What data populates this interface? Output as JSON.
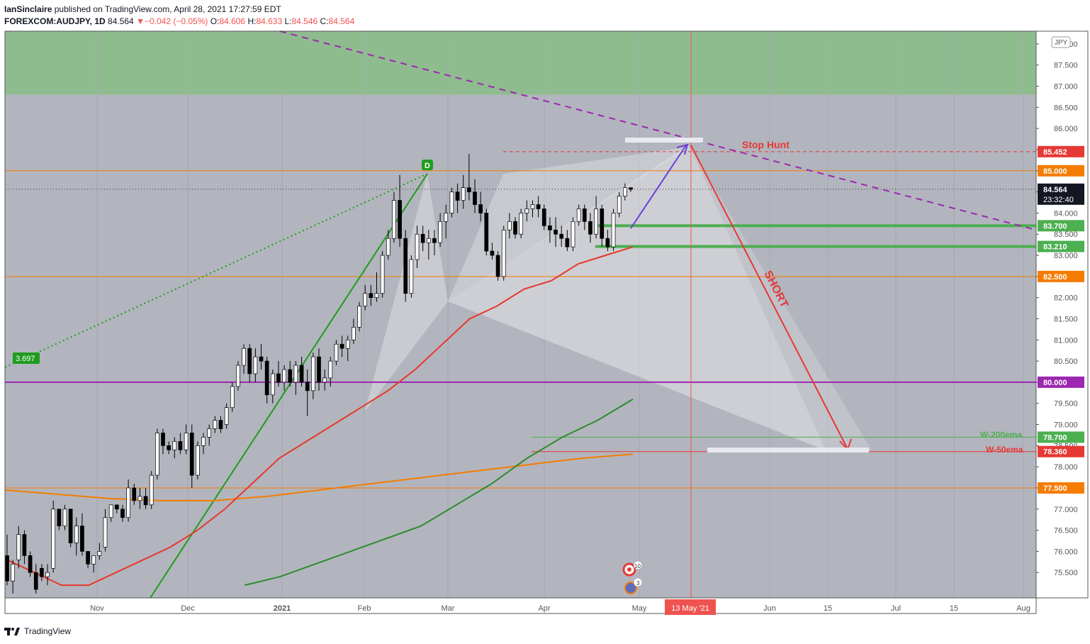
{
  "header": {
    "publisher": "IanSinclaire",
    "published_text": "published on TradingView.com, April 28, 2021 17:27:59 EDT",
    "symbol": "FOREXCOM:AUDJPY, 1D",
    "last": "84.564",
    "change_arrow": "▼",
    "change": "−0.042 (−0.05%)",
    "o_label": "O:",
    "o_value": "84.606",
    "h_label": "H:",
    "h_value": "84.633",
    "l_label": "L:",
    "l_value": "84.546",
    "c_label": "C:",
    "c_value": "84.564"
  },
  "footer": {
    "brand": "TradingView"
  },
  "colors": {
    "background": "#b2b5be",
    "green_zone": "#8fbc8f",
    "candle_up": "#ffffff",
    "candle_down": "#000000",
    "ema_red": "#e8372c",
    "ema_green": "#2e8b2e",
    "ma_orange": "#f57c00",
    "purple": "#9c27b0",
    "stop_hunt": "#e53935"
  },
  "chart_data": {
    "type": "candlestick",
    "symbol": "AUDJPY",
    "timeframe": "1D",
    "currency_badge": "JPY",
    "ylim": [
      74.9,
      88.3
    ],
    "y_ticks": [
      "75.500",
      "76.000",
      "76.500",
      "77.000",
      "77.500",
      "78.000",
      "78.500",
      "79.000",
      "79.500",
      "80.000",
      "80.500",
      "81.000",
      "81.500",
      "82.000",
      "82.500",
      "83.000",
      "83.500",
      "84.000",
      "84.500",
      "85.000",
      "85.500",
      "86.000",
      "86.500",
      "87.000",
      "87.500",
      "88.000"
    ],
    "x_ticks": [
      "Nov",
      "Dec",
      "2021",
      "Feb",
      "Mar",
      "Apr",
      "May",
      "Jun",
      "15",
      "Jul",
      "15",
      "Aug"
    ],
    "candles_ohlc": [
      [
        75.9,
        76.4,
        75.2,
        75.3
      ],
      [
        75.3,
        75.8,
        75.0,
        75.7
      ],
      [
        75.8,
        76.6,
        75.6,
        76.4
      ],
      [
        76.4,
        76.5,
        75.7,
        75.9
      ],
      [
        75.9,
        76.0,
        75.4,
        75.5
      ],
      [
        75.5,
        75.7,
        75.0,
        75.1
      ],
      [
        75.6,
        75.7,
        75.3,
        75.4
      ],
      [
        75.4,
        75.7,
        75.2,
        75.5
      ],
      [
        75.6,
        77.2,
        75.5,
        77.0
      ],
      [
        77.0,
        77.0,
        76.5,
        76.6
      ],
      [
        76.6,
        77.1,
        76.5,
        77.0
      ],
      [
        77.0,
        77.0,
        76.1,
        76.2
      ],
      [
        76.2,
        76.8,
        75.9,
        76.6
      ],
      [
        76.6,
        76.9,
        75.9,
        76.0
      ],
      [
        76.0,
        76.0,
        75.6,
        75.7
      ],
      [
        75.7,
        75.9,
        75.5,
        75.9
      ],
      [
        75.9,
        76.2,
        75.8,
        76.0
      ],
      [
        76.1,
        77.0,
        76.0,
        76.8
      ],
      [
        76.8,
        77.1,
        76.7,
        77.1
      ],
      [
        77.1,
        77.1,
        76.9,
        77.0
      ],
      [
        77.0,
        77.1,
        76.7,
        76.8
      ],
      [
        76.8,
        77.7,
        76.7,
        77.5
      ],
      [
        77.5,
        77.6,
        77.1,
        77.2
      ],
      [
        77.2,
        77.5,
        77.0,
        77.3
      ],
      [
        77.3,
        77.5,
        77.0,
        77.1
      ],
      [
        77.1,
        77.9,
        77.0,
        77.8
      ],
      [
        77.8,
        78.9,
        77.7,
        78.8
      ],
      [
        78.8,
        78.9,
        78.3,
        78.5
      ],
      [
        78.5,
        78.6,
        78.3,
        78.4
      ],
      [
        78.4,
        78.7,
        78.2,
        78.6
      ],
      [
        78.6,
        78.8,
        78.3,
        78.4
      ],
      [
        78.4,
        79.0,
        78.3,
        78.8
      ],
      [
        78.8,
        79.0,
        77.5,
        77.8
      ],
      [
        77.8,
        78.6,
        77.7,
        78.5
      ],
      [
        78.5,
        78.8,
        78.3,
        78.7
      ],
      [
        78.7,
        79.0,
        78.5,
        78.9
      ],
      [
        78.9,
        79.2,
        78.8,
        79.1
      ],
      [
        79.1,
        79.2,
        78.8,
        78.9
      ],
      [
        79.0,
        79.5,
        78.9,
        79.4
      ],
      [
        79.4,
        80.0,
        79.3,
        79.9
      ],
      [
        79.9,
        80.5,
        79.8,
        80.4
      ],
      [
        80.4,
        80.9,
        80.2,
        80.8
      ],
      [
        80.8,
        80.9,
        80.0,
        80.2
      ],
      [
        80.2,
        80.8,
        80.0,
        80.6
      ],
      [
        80.6,
        80.9,
        80.3,
        80.5
      ],
      [
        80.5,
        80.6,
        79.5,
        79.7
      ],
      [
        79.7,
        80.3,
        79.5,
        80.2
      ],
      [
        80.2,
        80.5,
        79.9,
        80.0
      ],
      [
        80.0,
        80.4,
        79.8,
        80.3
      ],
      [
        80.3,
        80.5,
        79.9,
        80.0
      ],
      [
        80.0,
        80.5,
        79.7,
        80.4
      ],
      [
        80.4,
        80.6,
        79.9,
        80.0
      ],
      [
        80.0,
        80.3,
        79.2,
        79.8
      ],
      [
        79.8,
        80.7,
        79.6,
        80.6
      ],
      [
        80.6,
        80.8,
        79.8,
        80.0
      ],
      [
        80.0,
        80.3,
        79.8,
        80.1
      ],
      [
        80.1,
        80.6,
        79.9,
        80.5
      ],
      [
        80.5,
        81.0,
        80.4,
        80.9
      ],
      [
        80.9,
        81.1,
        80.6,
        80.8
      ],
      [
        80.8,
        81.1,
        80.5,
        81.0
      ],
      [
        81.0,
        81.5,
        80.9,
        81.3
      ],
      [
        81.3,
        81.9,
        81.2,
        81.8
      ],
      [
        81.8,
        82.3,
        81.7,
        82.1
      ],
      [
        82.1,
        82.3,
        81.8,
        82.0
      ],
      [
        82.0,
        82.6,
        81.9,
        82.1
      ],
      [
        82.1,
        83.1,
        82.0,
        83.0
      ],
      [
        83.0,
        83.6,
        82.9,
        83.4
      ],
      [
        83.4,
        84.5,
        83.3,
        84.3
      ],
      [
        84.3,
        84.9,
        83.2,
        83.4
      ],
      [
        83.4,
        83.6,
        81.9,
        82.1
      ],
      [
        82.1,
        83.0,
        82.0,
        82.9
      ],
      [
        82.9,
        83.7,
        82.7,
        83.5
      ],
      [
        83.5,
        83.7,
        83.1,
        83.3
      ],
      [
        83.3,
        83.6,
        82.9,
        83.4
      ],
      [
        83.4,
        83.6,
        83.0,
        83.3
      ],
      [
        83.3,
        84.0,
        83.2,
        83.8
      ],
      [
        83.8,
        84.2,
        83.4,
        84.0
      ],
      [
        84.0,
        84.6,
        83.9,
        84.5
      ],
      [
        84.5,
        84.7,
        84.0,
        84.3
      ],
      [
        84.3,
        84.9,
        84.1,
        84.6
      ],
      [
        84.6,
        85.4,
        84.3,
        84.5
      ],
      [
        84.5,
        84.8,
        84.0,
        84.2
      ],
      [
        84.2,
        84.5,
        83.8,
        84.0
      ],
      [
        84.0,
        84.1,
        83.0,
        83.1
      ],
      [
        83.1,
        83.3,
        82.9,
        83.0
      ],
      [
        83.0,
        83.1,
        82.4,
        82.5
      ],
      [
        82.5,
        83.7,
        82.4,
        83.6
      ],
      [
        83.6,
        84.0,
        83.4,
        83.8
      ],
      [
        83.8,
        83.9,
        83.4,
        83.5
      ],
      [
        83.5,
        84.1,
        83.4,
        84.0
      ],
      [
        84.0,
        84.3,
        83.8,
        84.1
      ],
      [
        84.1,
        84.3,
        83.9,
        84.2
      ],
      [
        84.2,
        84.4,
        83.9,
        84.1
      ],
      [
        84.1,
        84.2,
        83.6,
        83.7
      ],
      [
        83.7,
        83.9,
        83.3,
        83.6
      ],
      [
        83.6,
        83.9,
        83.2,
        83.5
      ],
      [
        83.5,
        83.7,
        83.2,
        83.4
      ],
      [
        83.4,
        83.6,
        83.1,
        83.2
      ],
      [
        83.2,
        83.9,
        83.1,
        83.8
      ],
      [
        83.8,
        84.2,
        83.7,
        84.1
      ],
      [
        84.1,
        84.2,
        83.6,
        83.8
      ],
      [
        83.8,
        84.0,
        83.3,
        83.5
      ],
      [
        83.5,
        84.4,
        83.4,
        84.1
      ],
      [
        84.1,
        84.2,
        83.2,
        83.4
      ],
      [
        83.4,
        83.6,
        83.1,
        83.2
      ],
      [
        83.2,
        84.1,
        83.1,
        84.0
      ],
      [
        84.0,
        84.5,
        83.9,
        84.4
      ],
      [
        84.4,
        84.7,
        84.3,
        84.6
      ],
      [
        84.6,
        84.6,
        84.5,
        84.56
      ]
    ],
    "ema_red": [
      75.8,
      75.5,
      75.2,
      75.2,
      75.5,
      75.8,
      76.1,
      76.5,
      77.0,
      77.6,
      78.2,
      78.6,
      79.0,
      79.4,
      79.8,
      80.3,
      80.9,
      81.5,
      81.8,
      82.2,
      82.4,
      82.8,
      83.0,
      83.2
    ],
    "ema_green_200": [
      75.2,
      75.4,
      75.7,
      76.0,
      76.3,
      76.6,
      77.1,
      77.6,
      78.2,
      78.7,
      79.1,
      79.6
    ],
    "ma_orange": [
      77.45,
      77.35,
      77.25,
      77.2,
      77.2,
      77.3,
      77.45,
      77.6,
      77.75,
      77.9,
      78.05,
      78.2,
      78.3
    ],
    "horizontal_levels": [
      {
        "label": "85.452",
        "value": 85.452,
        "color": "#e53935",
        "style": "dashed"
      },
      {
        "label": "85.000",
        "value": 85.0,
        "color": "#f57c00"
      },
      {
        "label": "83.700",
        "value": 83.7,
        "color": "#4caf50"
      },
      {
        "label": "83.210",
        "value": 83.21,
        "color": "#4caf50"
      },
      {
        "label": "82.500",
        "value": 82.5,
        "color": "#f57c00"
      },
      {
        "label": "80.000",
        "value": 80.0,
        "color": "#9c27b0"
      },
      {
        "label": "78.700",
        "value": 78.7,
        "color": "#4caf50"
      },
      {
        "label": "78.360",
        "value": 78.36,
        "color": "#e53935"
      },
      {
        "label": "77.500",
        "value": 77.5,
        "color": "#f57c00"
      }
    ],
    "last_price": {
      "label": "84.564",
      "countdown": "23:32:40",
      "value": 84.564
    },
    "green_zone": [
      86.8,
      88.3
    ],
    "annotations": {
      "stop_hunt": "Stop Hunt",
      "short": "SHORT",
      "w200": "W-200ema",
      "w50": "W-50ema",
      "point_d": "D",
      "ratio": "3.697",
      "date_marker": "13 May '21",
      "event1": "10",
      "event2": "3"
    },
    "target": 78.5,
    "projected_high": 85.8
  }
}
